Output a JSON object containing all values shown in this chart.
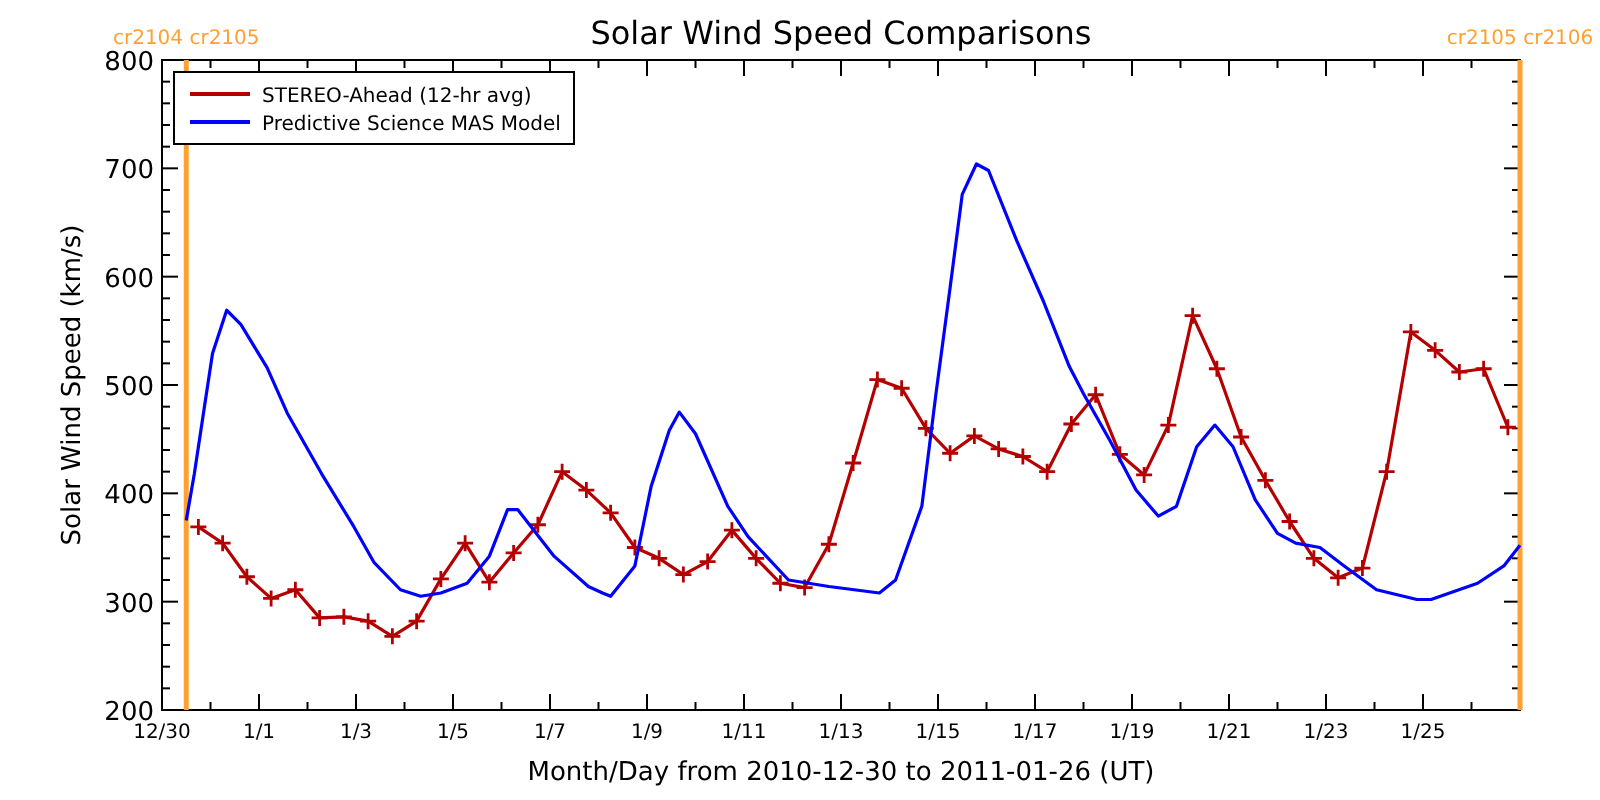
{
  "chart_data": {
    "type": "line",
    "title": "Solar Wind Speed Comparisons",
    "xlabel": "Month/Day from 2010-12-30 to 2011-01-26 (UT)",
    "ylabel": "Solar Wind Speed (km/s)",
    "xlim": [
      "2010-12-30",
      "2011-01-27"
    ],
    "xticks": [
      {
        "value": "2010-12-30",
        "label": "12/30"
      },
      {
        "value": "2010-12-31",
        "label": null
      },
      {
        "value": "2011-01-01",
        "label": "1/1"
      },
      {
        "value": "2011-01-02",
        "label": null
      },
      {
        "value": "2011-01-03",
        "label": "1/3"
      },
      {
        "value": "2011-01-04",
        "label": null
      },
      {
        "value": "2011-01-05",
        "label": "1/5"
      },
      {
        "value": "2011-01-06",
        "label": null
      },
      {
        "value": "2011-01-07",
        "label": "1/7"
      },
      {
        "value": "2011-01-08",
        "label": null
      },
      {
        "value": "2011-01-09",
        "label": "1/9"
      },
      {
        "value": "2011-01-10",
        "label": null
      },
      {
        "value": "2011-01-11",
        "label": "1/11"
      },
      {
        "value": "2011-01-12",
        "label": null
      },
      {
        "value": "2011-01-13",
        "label": "1/13"
      },
      {
        "value": "2011-01-14",
        "label": null
      },
      {
        "value": "2011-01-15",
        "label": "1/15"
      },
      {
        "value": "2011-01-16",
        "label": null
      },
      {
        "value": "2011-01-17",
        "label": "1/17"
      },
      {
        "value": "2011-01-18",
        "label": null
      },
      {
        "value": "2011-01-19",
        "label": "1/19"
      },
      {
        "value": "2011-01-20",
        "label": null
      },
      {
        "value": "2011-01-21",
        "label": "1/21"
      },
      {
        "value": "2011-01-22",
        "label": null
      },
      {
        "value": "2011-01-23",
        "label": "1/23"
      },
      {
        "value": "2011-01-24",
        "label": null
      },
      {
        "value": "2011-01-25",
        "label": "1/25"
      },
      {
        "value": "2011-01-26",
        "label": null
      }
    ],
    "ylim": [
      200,
      800
    ],
    "yticks": [
      200,
      {
        "value": 220,
        "label": null
      },
      {
        "value": 240,
        "label": null
      },
      {
        "value": 260,
        "label": null
      },
      {
        "value": 280,
        "label": null
      },
      300,
      {
        "value": 320,
        "label": null
      },
      {
        "value": 340,
        "label": null
      },
      {
        "value": 360,
        "label": null
      },
      {
        "value": 380,
        "label": null
      },
      400,
      {
        "value": 420,
        "label": null
      },
      {
        "value": 440,
        "label": null
      },
      {
        "value": 460,
        "label": null
      },
      {
        "value": 480,
        "label": null
      },
      500,
      {
        "value": 520,
        "label": null
      },
      {
        "value": 540,
        "label": null
      },
      {
        "value": 560,
        "label": null
      },
      {
        "value": 580,
        "label": null
      },
      600,
      {
        "value": 620,
        "label": null
      },
      {
        "value": 640,
        "label": null
      },
      {
        "value": 660,
        "label": null
      },
      {
        "value": 680,
        "label": null
      },
      700,
      {
        "value": 720,
        "label": null
      },
      {
        "value": 740,
        "label": null
      },
      {
        "value": 760,
        "label": null
      },
      {
        "value": 780,
        "label": null
      },
      800
    ],
    "legend": "top left",
    "ref_lines": [
      {
        "axis": "x",
        "value": "2010-12-30T12:00",
        "label": "cr2104 cr2105",
        "color": "#ffa030"
      },
      {
        "axis": "x",
        "value": "2011-01-27",
        "label": "cr2105 cr2106",
        "color": "#ffa030"
      }
    ],
    "series": [
      {
        "name": "STEREO-Ahead (12-hr avg)",
        "color": "#b40000",
        "marker": "cross",
        "x": [
          "2010-12-30T18:00",
          "2010-12-31T06:00",
          "2010-12-31T18:00",
          "2011-01-01T06:00",
          "2011-01-01T18:00",
          "2011-01-02T06:00",
          "2011-01-02T18:00",
          "2011-01-03T06:00",
          "2011-01-03T18:00",
          "2011-01-04T06:00",
          "2011-01-04T18:00",
          "2011-01-05T06:00",
          "2011-01-05T18:00",
          "2011-01-06T06:00",
          "2011-01-06T18:00",
          "2011-01-07T06:00",
          "2011-01-07T18:00",
          "2011-01-08T06:00",
          "2011-01-08T18:00",
          "2011-01-09T06:00",
          "2011-01-09T18:00",
          "2011-01-10T06:00",
          "2011-01-10T18:00",
          "2011-01-11T06:00",
          "2011-01-11T18:00",
          "2011-01-12T06:00",
          "2011-01-12T18:00",
          "2011-01-13T06:00",
          "2011-01-13T18:00",
          "2011-01-14T06:00",
          "2011-01-14T18:00",
          "2011-01-15T06:00",
          "2011-01-15T18:00",
          "2011-01-16T06:00",
          "2011-01-16T18:00",
          "2011-01-17T06:00",
          "2011-01-17T18:00",
          "2011-01-18T06:00",
          "2011-01-18T18:00",
          "2011-01-19T06:00",
          "2011-01-19T18:00",
          "2011-01-20T06:00",
          "2011-01-20T18:00",
          "2011-01-21T06:00",
          "2011-01-21T18:00",
          "2011-01-22T06:00",
          "2011-01-22T18:00",
          "2011-01-23T06:00",
          "2011-01-23T18:00",
          "2011-01-24T06:00",
          "2011-01-24T18:00",
          "2011-01-25T06:00",
          "2011-01-25T18:00",
          "2011-01-26T06:00",
          "2011-01-26T18:00"
        ],
        "values": [
          369,
          354,
          323,
          303,
          311,
          285,
          286,
          282,
          268,
          282,
          321,
          354,
          318,
          345,
          371,
          420,
          403,
          382,
          350,
          340,
          325,
          337,
          366,
          340,
          317,
          313,
          353,
          428,
          505,
          497,
          460,
          437,
          453,
          441,
          434,
          420,
          464,
          491,
          436,
          417,
          463,
          564,
          515,
          452,
          412,
          374,
          340,
          322,
          331,
          420,
          549,
          532,
          512,
          515,
          461
        ]
      },
      {
        "name": "Predictive Science MAS Model",
        "color": "#0000ff",
        "marker": "none",
        "x": [
          "2010-12-30T12:00",
          "2010-12-30T16:00",
          "2010-12-30T21:00",
          "2010-12-31T01:00",
          "2010-12-31T08:00",
          "2010-12-31T15:00",
          "2011-01-01T04:00",
          "2011-01-01T14:00",
          "2011-01-02T07:00",
          "2011-01-02T23:00",
          "2011-01-03T09:00",
          "2011-01-03T22:00",
          "2011-01-04T08:00",
          "2011-01-04T18:00",
          "2011-01-05T07:00",
          "2011-01-05T18:00",
          "2011-01-06T03:00",
          "2011-01-06T08:00",
          "2011-01-07T02:00",
          "2011-01-07T19:00",
          "2011-01-08T02:00",
          "2011-01-08T06:00",
          "2011-01-08T18:00",
          "2011-01-09T02:00",
          "2011-01-09T11:00",
          "2011-01-09T16:00",
          "2011-01-10T00:00",
          "2011-01-10T16:00",
          "2011-01-11T02:00",
          "2011-01-11T22:00",
          "2011-01-12T18:00",
          "2011-01-13T19:00",
          "2011-01-14T03:00",
          "2011-01-14T16:00",
          "2011-01-14T23:00",
          "2011-01-15T06:00",
          "2011-01-15T12:00",
          "2011-01-15T19:00",
          "2011-01-16T01:00",
          "2011-01-16T15:00",
          "2011-01-17T04:00",
          "2011-01-17T17:00",
          "2011-01-18T00:00",
          "2011-01-18T13:00",
          "2011-01-19T02:00",
          "2011-01-19T13:00",
          "2011-01-19T22:00",
          "2011-01-20T08:00",
          "2011-01-20T17:00",
          "2011-01-21T02:00",
          "2011-01-21T13:00",
          "2011-01-22T00:00",
          "2011-01-22T09:00",
          "2011-01-22T21:00",
          "2011-01-23T09:00",
          "2011-01-24T01:00",
          "2011-01-24T21:00",
          "2011-01-25T04:00",
          "2011-01-26T03:00",
          "2011-01-26T16:00",
          "2011-01-27T00:00"
        ],
        "values": [
          375,
          418,
          480,
          529,
          569,
          556,
          516,
          474,
          418,
          369,
          336,
          311,
          305,
          308,
          317,
          342,
          385,
          385,
          342,
          314,
          308,
          305,
          333,
          406,
          458,
          475,
          455,
          388,
          360,
          320,
          314,
          308,
          320,
          388,
          492,
          590,
          676,
          704,
          698,
          633,
          578,
          517,
          492,
          449,
          403,
          379,
          388,
          443,
          463,
          443,
          394,
          363,
          354,
          350,
          333,
          311,
          302,
          302,
          317,
          333,
          352
        ]
      }
    ]
  }
}
